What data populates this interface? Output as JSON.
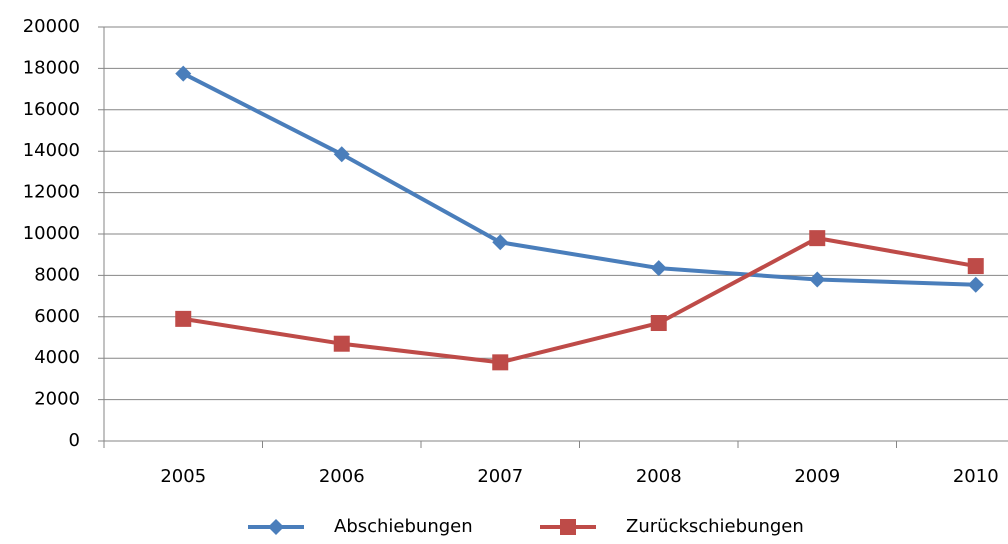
{
  "chart_data": {
    "type": "line",
    "categories": [
      "2005",
      "2006",
      "2007",
      "2008",
      "2009",
      "2010"
    ],
    "series": [
      {
        "name": "Abschiebungen",
        "color": "#4a7ebb",
        "marker": "diamond",
        "values": [
          17750,
          13850,
          9600,
          8350,
          7800,
          7550
        ]
      },
      {
        "name": "Zurückschiebungen",
        "color": "#be4b48",
        "marker": "square",
        "values": [
          5900,
          4700,
          3800,
          5700,
          9800,
          8450
        ]
      }
    ],
    "ylim": [
      0,
      20000
    ],
    "yticks": [
      0,
      2000,
      4000,
      6000,
      8000,
      10000,
      12000,
      14000,
      16000,
      18000,
      20000
    ],
    "grid": true
  }
}
